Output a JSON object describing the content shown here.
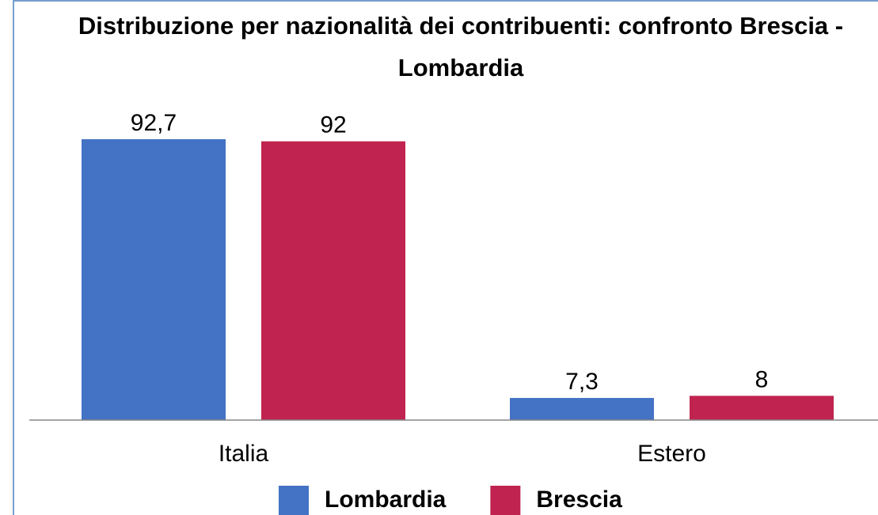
{
  "chart_data": {
    "type": "bar",
    "title": "Distribuzione per nazionalità dei contribuenti: confronto Brescia - Lombardia",
    "categories": [
      "Italia",
      "Estero"
    ],
    "series": [
      {
        "name": "Lombardia",
        "color": "#4472c4",
        "values": [
          92.7,
          7.3
        ],
        "value_labels": [
          "92,7",
          "7,3"
        ]
      },
      {
        "name": "Brescia",
        "color": "#c0234f",
        "values": [
          92,
          8
        ],
        "value_labels": [
          "92",
          "8"
        ]
      }
    ],
    "ylim": [
      0,
      100
    ],
    "legend": "bottom"
  }
}
